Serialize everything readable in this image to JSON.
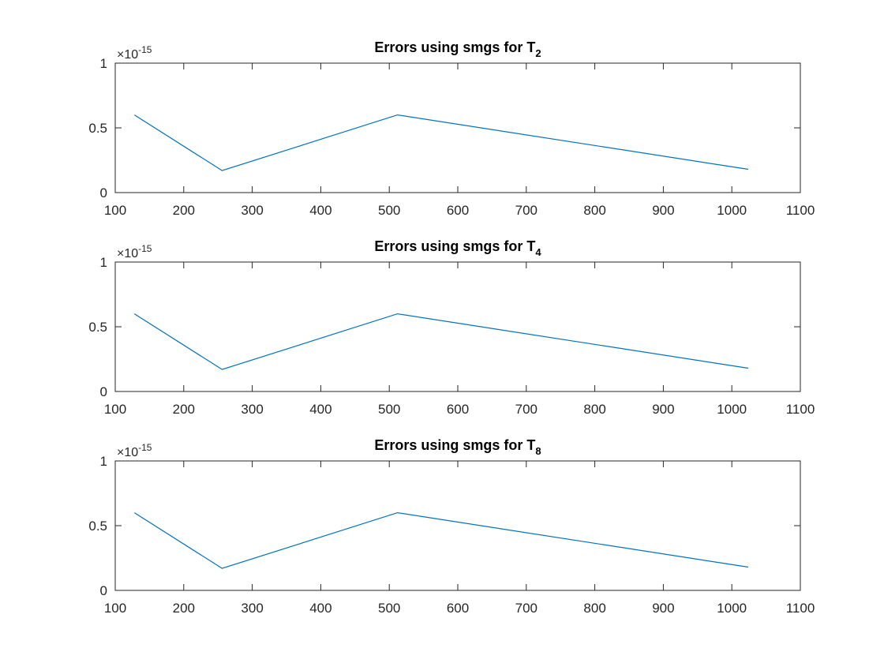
{
  "colors": {
    "line": "#0072BD",
    "axis": "#262626",
    "background": "#ffffff"
  },
  "chart_data": [
    {
      "type": "line",
      "title": "Errors using smgs for T",
      "title_subscript": "2",
      "x": [
        128,
        256,
        512,
        1024
      ],
      "series": [
        {
          "values": [
            6e-16,
            1.7e-16,
            6e-16,
            1.8e-16
          ]
        }
      ],
      "xlim": [
        100,
        1100
      ],
      "ylim": [
        0,
        1e-15
      ],
      "xticks": [
        "100",
        "200",
        "300",
        "400",
        "500",
        "600",
        "700",
        "800",
        "900",
        "1000",
        "1100"
      ],
      "yticks": [
        "0",
        "0.5",
        "1"
      ],
      "y_exponent_base": "×10",
      "y_exponent": "-15",
      "xlabel": "",
      "ylabel": "",
      "grid": false
    },
    {
      "type": "line",
      "title": "Errors using smgs for T",
      "title_subscript": "4",
      "x": [
        128,
        256,
        512,
        1024
      ],
      "series": [
        {
          "values": [
            6e-16,
            1.7e-16,
            6e-16,
            1.8e-16
          ]
        }
      ],
      "xlim": [
        100,
        1100
      ],
      "ylim": [
        0,
        1e-15
      ],
      "xticks": [
        "100",
        "200",
        "300",
        "400",
        "500",
        "600",
        "700",
        "800",
        "900",
        "1000",
        "1100"
      ],
      "yticks": [
        "0",
        "0.5",
        "1"
      ],
      "y_exponent_base": "×10",
      "y_exponent": "-15",
      "xlabel": "",
      "ylabel": "",
      "grid": false
    },
    {
      "type": "line",
      "title": "Errors using smgs for T",
      "title_subscript": "8",
      "x": [
        128,
        256,
        512,
        1024
      ],
      "series": [
        {
          "values": [
            6e-16,
            1.7e-16,
            6e-16,
            1.8e-16
          ]
        }
      ],
      "xlim": [
        100,
        1100
      ],
      "ylim": [
        0,
        1e-15
      ],
      "xticks": [
        "100",
        "200",
        "300",
        "400",
        "500",
        "600",
        "700",
        "800",
        "900",
        "1000",
        "1100"
      ],
      "yticks": [
        "0",
        "0.5",
        "1"
      ],
      "y_exponent_base": "×10",
      "y_exponent": "-15",
      "xlabel": "",
      "ylabel": "",
      "grid": false
    }
  ]
}
